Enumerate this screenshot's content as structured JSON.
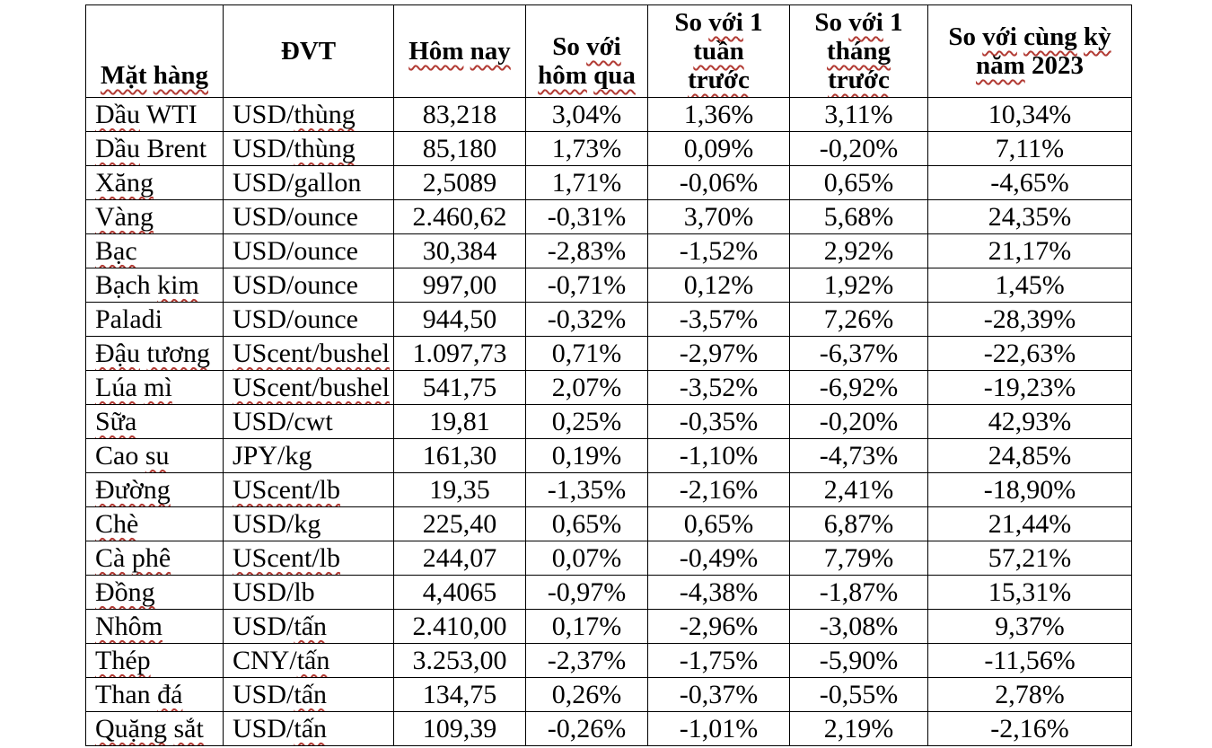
{
  "page": {
    "background": "#ffffff",
    "text_color": "#000000"
  },
  "table": {
    "border_color": "#000000",
    "spell_underline_color": "#b23b34",
    "headers": [
      {
        "id": "mat-hang",
        "label": "Mặt hàng",
        "valign": "bottom",
        "lines": [
          [
            [
              "Mặt",
              1
            ],
            [
              " ",
              0
            ],
            [
              "hàng",
              1
            ]
          ]
        ]
      },
      {
        "id": "dvt",
        "label": "ĐVT",
        "valign": "middle",
        "lines": [
          [
            [
              "ĐVT",
              0
            ]
          ]
        ]
      },
      {
        "id": "hom-nay",
        "label": "Hôm nay",
        "valign": "middle",
        "lines": [
          [
            [
              "Hôm",
              1
            ],
            [
              " ",
              0
            ],
            [
              "nay",
              1
            ]
          ]
        ]
      },
      {
        "id": "so-voi-hom-qua",
        "label": "So với hôm qua",
        "valign": "bottom",
        "lines": [
          [
            [
              "So ",
              0
            ],
            [
              "với",
              1
            ]
          ],
          [
            [
              "hôm",
              1
            ],
            [
              " ",
              0
            ],
            [
              "qua",
              1
            ]
          ]
        ]
      },
      {
        "id": "so-voi-1-tuan-truoc",
        "label": "So với 1 tuần trước",
        "valign": "middle",
        "lines": [
          [
            [
              "So ",
              0
            ],
            [
              "với",
              1
            ],
            [
              " 1",
              0
            ]
          ],
          [
            [
              "tuần",
              1
            ]
          ],
          [
            [
              "trước",
              1
            ]
          ]
        ]
      },
      {
        "id": "so-voi-1-thang-truoc",
        "label": "So với 1 tháng trước",
        "valign": "middle",
        "lines": [
          [
            [
              "So ",
              0
            ],
            [
              "với",
              1
            ],
            [
              " 1",
              0
            ]
          ],
          [
            [
              "tháng",
              1
            ]
          ],
          [
            [
              "trước",
              1
            ]
          ]
        ]
      },
      {
        "id": "so-voi-cung-ky-nam-2023",
        "label": "So với cùng kỳ năm 2023",
        "valign": "middle",
        "lines": [
          [
            [
              "So ",
              0
            ],
            [
              "với",
              1
            ],
            [
              " ",
              0
            ],
            [
              "cùng",
              1
            ],
            [
              " ",
              0
            ],
            [
              "kỳ",
              1
            ]
          ],
          [
            [
              "năm",
              1
            ],
            [
              " 2023",
              0
            ]
          ]
        ]
      }
    ],
    "rows": [
      {
        "name": [
          [
            "Dầu",
            1
          ],
          [
            " WTI",
            0
          ]
        ],
        "unit": [
          [
            "USD/",
            0
          ],
          [
            "thùng",
            1
          ]
        ],
        "values": [
          "83,218",
          "3,04%",
          "1,36%",
          "3,11%",
          "10,34%"
        ]
      },
      {
        "name": [
          [
            "Dầu",
            1
          ],
          [
            " Brent",
            0
          ]
        ],
        "unit": [
          [
            "USD/",
            0
          ],
          [
            "thùng",
            1
          ]
        ],
        "values": [
          "85,180",
          "1,73%",
          "0,09%",
          "-0,20%",
          "7,11%"
        ]
      },
      {
        "name": [
          [
            "Xăng",
            1
          ]
        ],
        "unit": [
          [
            "USD/gallon",
            0
          ]
        ],
        "values": [
          "2,5089",
          "1,71%",
          "-0,06%",
          "0,65%",
          "-4,65%"
        ]
      },
      {
        "name": [
          [
            "Vàng",
            1
          ]
        ],
        "unit": [
          [
            "USD/ounce",
            0
          ]
        ],
        "values": [
          "2.460,62",
          "-0,31%",
          "3,70%",
          "5,68%",
          "24,35%"
        ]
      },
      {
        "name": [
          [
            "Bạc",
            1
          ]
        ],
        "unit": [
          [
            "USD/ounce",
            0
          ]
        ],
        "values": [
          "30,384",
          "-2,83%",
          "-1,52%",
          "2,92%",
          "21,17%"
        ]
      },
      {
        "name": [
          [
            "Bạch ",
            0
          ],
          [
            "kim",
            1
          ]
        ],
        "unit": [
          [
            "USD/ounce",
            0
          ]
        ],
        "values": [
          "997,00",
          "-0,71%",
          "0,12%",
          "1,92%",
          "1,45%"
        ]
      },
      {
        "name": [
          [
            "Paladi",
            0
          ]
        ],
        "unit": [
          [
            "USD/ounce",
            0
          ]
        ],
        "values": [
          "944,50",
          "-0,32%",
          "-3,57%",
          "7,26%",
          "-28,39%"
        ]
      },
      {
        "name": [
          [
            "Đậu",
            1
          ],
          [
            " ",
            0
          ],
          [
            "tương",
            1
          ]
        ],
        "unit": [
          [
            "UScent/bushel",
            1
          ]
        ],
        "values": [
          "1.097,73",
          "0,71%",
          "-2,97%",
          "-6,37%",
          "-22,63%"
        ]
      },
      {
        "name": [
          [
            "Lúa",
            1
          ],
          [
            " ",
            0
          ],
          [
            "mì",
            1
          ]
        ],
        "unit": [
          [
            "UScent/bushel",
            1
          ]
        ],
        "values": [
          "541,75",
          "2,07%",
          "-3,52%",
          "-6,92%",
          "-19,23%"
        ]
      },
      {
        "name": [
          [
            "Sữa",
            1
          ]
        ],
        "unit": [
          [
            "USD/cwt",
            0
          ]
        ],
        "values": [
          "19,81",
          "0,25%",
          "-0,35%",
          "-0,20%",
          "42,93%"
        ]
      },
      {
        "name": [
          [
            "Cao ",
            0
          ],
          [
            "su",
            1
          ]
        ],
        "unit": [
          [
            "JPY/kg",
            0
          ]
        ],
        "values": [
          "161,30",
          "0,19%",
          "-1,10%",
          "-4,73%",
          "24,85%"
        ]
      },
      {
        "name": [
          [
            "Đường",
            1
          ]
        ],
        "unit": [
          [
            "UScent/lb",
            1
          ]
        ],
        "values": [
          "19,35",
          "-1,35%",
          "-2,16%",
          "2,41%",
          "-18,90%"
        ]
      },
      {
        "name": [
          [
            "Chè",
            1
          ]
        ],
        "unit": [
          [
            "USD/kg",
            0
          ]
        ],
        "values": [
          "225,40",
          "0,65%",
          "0,65%",
          "6,87%",
          "21,44%"
        ]
      },
      {
        "name": [
          [
            "Cà",
            1
          ],
          [
            " ",
            0
          ],
          [
            "phê",
            1
          ]
        ],
        "unit": [
          [
            "UScent/lb",
            1
          ]
        ],
        "values": [
          "244,07",
          "0,07%",
          "-0,49%",
          "7,79%",
          "57,21%"
        ]
      },
      {
        "name": [
          [
            "Đồng",
            1
          ]
        ],
        "unit": [
          [
            "USD/lb",
            0
          ]
        ],
        "values": [
          "4,4065",
          "-0,97%",
          "-4,38%",
          "-1,87%",
          "15,31%"
        ]
      },
      {
        "name": [
          [
            "Nhôm",
            1
          ]
        ],
        "unit": [
          [
            "USD/",
            0
          ],
          [
            "tấn",
            1
          ]
        ],
        "values": [
          "2.410,00",
          "0,17%",
          "-2,96%",
          "-3,08%",
          "9,37%"
        ]
      },
      {
        "name": [
          [
            "Thép",
            1
          ]
        ],
        "unit": [
          [
            "CNY/",
            0
          ],
          [
            "tấn",
            1
          ]
        ],
        "values": [
          "3.253,00",
          "-2,37%",
          "-1,75%",
          "-5,90%",
          "-11,56%"
        ]
      },
      {
        "name": [
          [
            "Than ",
            0
          ],
          [
            "đá",
            1
          ]
        ],
        "unit": [
          [
            "USD/",
            0
          ],
          [
            "tấn",
            1
          ]
        ],
        "values": [
          "134,75",
          "0,26%",
          "-0,37%",
          "-0,55%",
          "2,78%"
        ]
      },
      {
        "name": [
          [
            "Quặng",
            1
          ],
          [
            " ",
            0
          ],
          [
            "sắt",
            1
          ]
        ],
        "unit": [
          [
            "USD/",
            0
          ],
          [
            "tấn",
            1
          ]
        ],
        "values": [
          "109,39",
          "-0,26%",
          "-1,01%",
          "2,19%",
          "-2,16%"
        ]
      }
    ],
    "value_column_keys": [
      "today",
      "vs-yesterday",
      "vs-1-week",
      "vs-1-month",
      "vs-2023"
    ]
  }
}
